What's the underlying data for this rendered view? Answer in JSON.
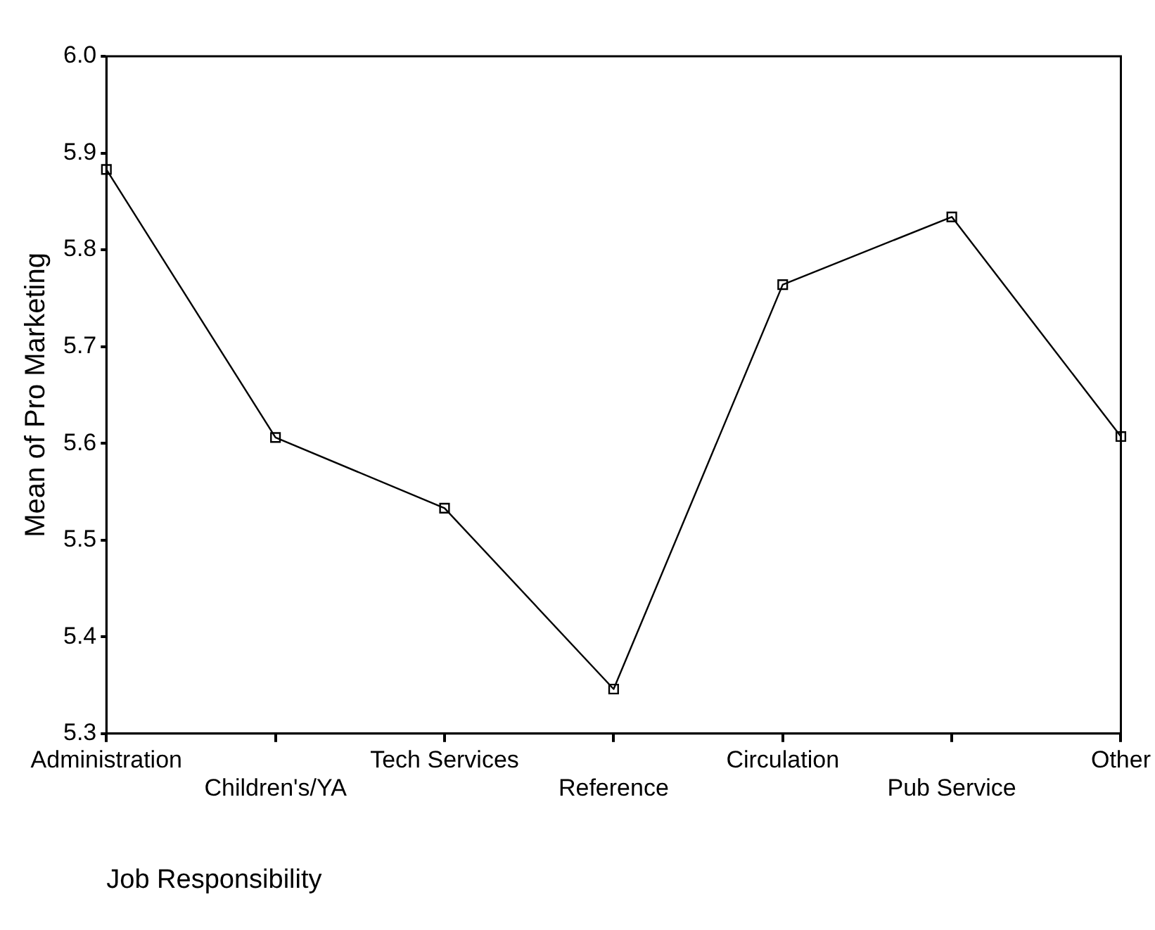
{
  "chart_data": {
    "type": "line",
    "xlabel": "Job Responsibility",
    "ylabel": "Mean of Pro Marketing",
    "categories": [
      "Administration",
      "Children's/YA",
      "Tech Services",
      "Reference",
      "Circulation",
      "Pub Service",
      "Other"
    ],
    "series": [
      {
        "color": "#000000",
        "values": [
          5.883,
          5.606,
          5.533,
          5.346,
          5.764,
          5.834,
          5.607
        ]
      }
    ],
    "ylim": [
      5.3,
      6.0
    ],
    "yticks": [
      {
        "value": 5.3,
        "label": "5.3"
      },
      {
        "value": 5.4,
        "label": "5.4"
      },
      {
        "value": 5.5,
        "label": "5.5"
      },
      {
        "value": 5.6,
        "label": "5.6"
      },
      {
        "value": 5.7,
        "label": "5.7"
      },
      {
        "value": 5.8,
        "label": "5.8"
      },
      {
        "value": 5.9,
        "label": "5.9"
      },
      {
        "value": 6.0,
        "label": "6.0"
      }
    ],
    "grid": false,
    "legend": false,
    "marker": "square",
    "line_style": "solid"
  }
}
